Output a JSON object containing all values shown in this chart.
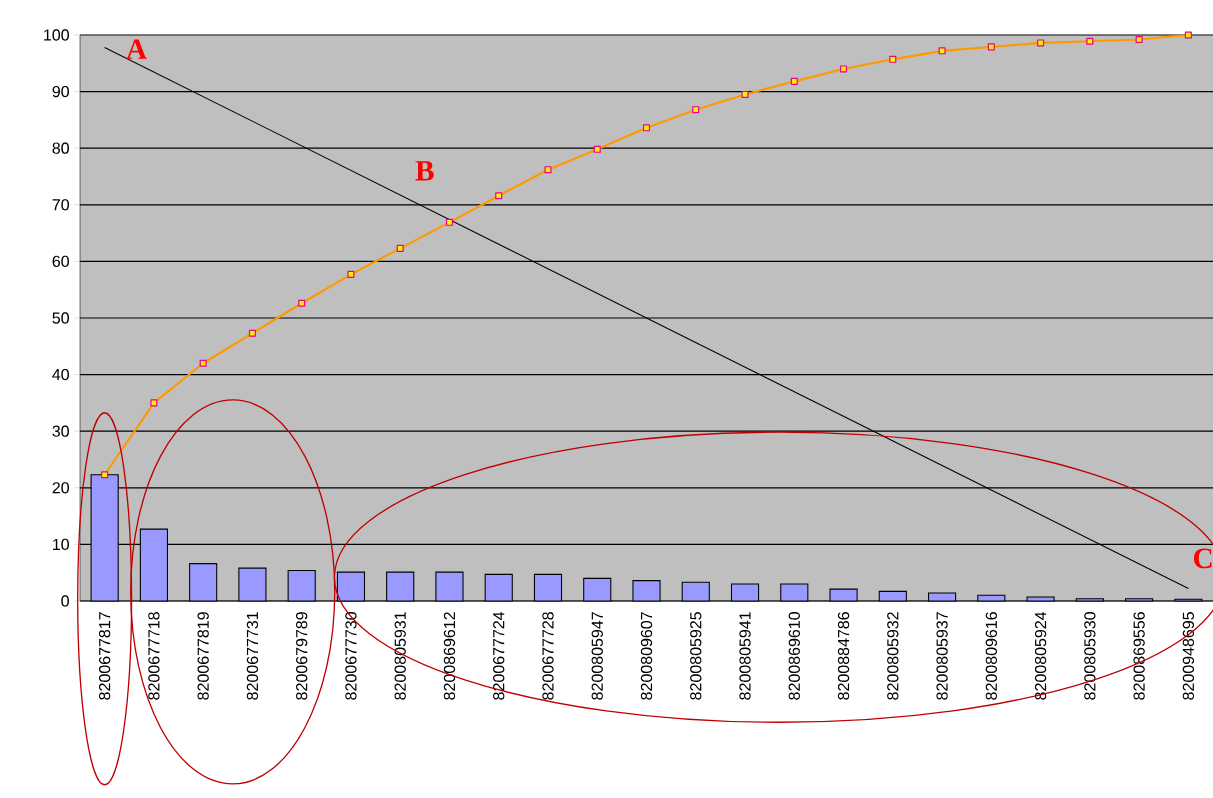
{
  "chart_data": {
    "type": "bar",
    "categories": [
      "8200677817",
      "8200677718",
      "8200677819",
      "8200677731",
      "8200679789",
      "8200677730",
      "8200805931",
      "8200869612",
      "8200677724",
      "8200677728",
      "8200805947",
      "8200809607",
      "8200805925",
      "8200805941",
      "8200869610",
      "8200884786",
      "8200805932",
      "8200805937",
      "8200809616",
      "8200805924",
      "8200805930",
      "8200869556",
      "8200948695"
    ],
    "series": [
      {
        "color": "#9999ff",
        "values": [
          22.3,
          12.7,
          6.6,
          5.8,
          5.4,
          5.1,
          5.1,
          5.1,
          4.7,
          4.7,
          4.0,
          3.6,
          3.3,
          3.0,
          3.0,
          2.1,
          1.7,
          1.4,
          1.0,
          0.7,
          0.4,
          0.4,
          0.3
        ]
      },
      {
        "type": "line",
        "color": "#ff9900",
        "marker": "square",
        "values": [
          22.3,
          35.0,
          42.0,
          47.3,
          52.6,
          57.7,
          62.3,
          66.9,
          71.6,
          76.2,
          79.8,
          83.6,
          86.8,
          89.5,
          91.8,
          94.0,
          95.7,
          97.2,
          97.9,
          98.6,
          98.9,
          99.2,
          100
        ]
      },
      {
        "type": "line",
        "color": "#000000",
        "marker": "none",
        "values": [
          97.8,
          null,
          null,
          null,
          null,
          null,
          null,
          null,
          null,
          null,
          null,
          null,
          null,
          null,
          null,
          null,
          null,
          null,
          null,
          null,
          null,
          null,
          2.2
        ]
      }
    ],
    "ylim": [
      0,
      100
    ],
    "yticks": [
      0,
      10,
      20,
      30,
      40,
      50,
      60,
      70,
      80,
      90,
      100
    ],
    "grid": "y",
    "annotations": [
      "A",
      "B",
      "C"
    ]
  }
}
